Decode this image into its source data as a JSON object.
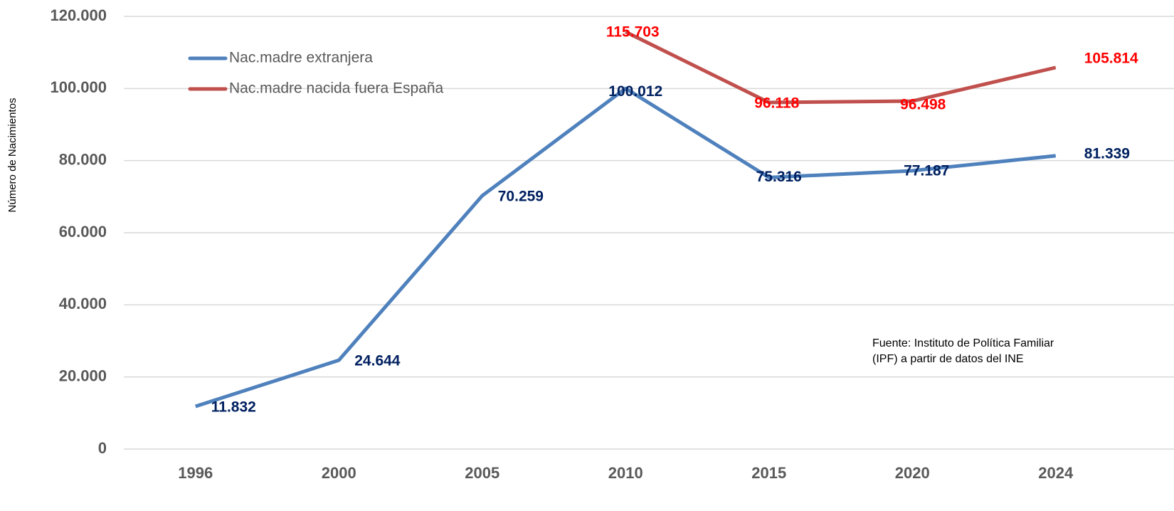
{
  "chart_data": {
    "type": "line",
    "y_axis_label": "Número de Nacimientos",
    "categories": [
      "1996",
      "2000",
      "2005",
      "2010",
      "2015",
      "2020",
      "2024"
    ],
    "series": [
      {
        "name": "Nac.madre extranjera",
        "color": "#4f81bd",
        "label_color": "#002060",
        "values": [
          11832,
          24644,
          70259,
          100012,
          75316,
          77187,
          81339
        ],
        "value_labels": [
          "11.832",
          "24.644",
          "70.259",
          "100.012",
          "75.316",
          "77.187",
          "81.339"
        ]
      },
      {
        "name": "Nac.madre nacida fuera España",
        "color": "#c0504d",
        "label_color": "#ff0000",
        "values": [
          null,
          null,
          null,
          115703,
          96118,
          96498,
          105814
        ],
        "value_labels": [
          null,
          null,
          null,
          "115.703",
          "96.118",
          "96.498",
          "105.814"
        ]
      }
    ],
    "ylim": [
      0,
      120000
    ],
    "yticks": [
      0,
      {
        "value": 20000,
        "label": "20.000"
      },
      {
        "value": 40000,
        "label": "40.000"
      },
      {
        "value": 60000,
        "label": "60.000"
      },
      {
        "value": 80000,
        "label": "80.000"
      },
      {
        "value": 100000,
        "label": "100.000"
      },
      {
        "value": 120000,
        "label": "120.000"
      }
    ],
    "grid": true,
    "legend": "top-left",
    "source": [
      "Fuente: Instituto de Política Familiar",
      "(IPF) a partir de datos del INE"
    ]
  }
}
